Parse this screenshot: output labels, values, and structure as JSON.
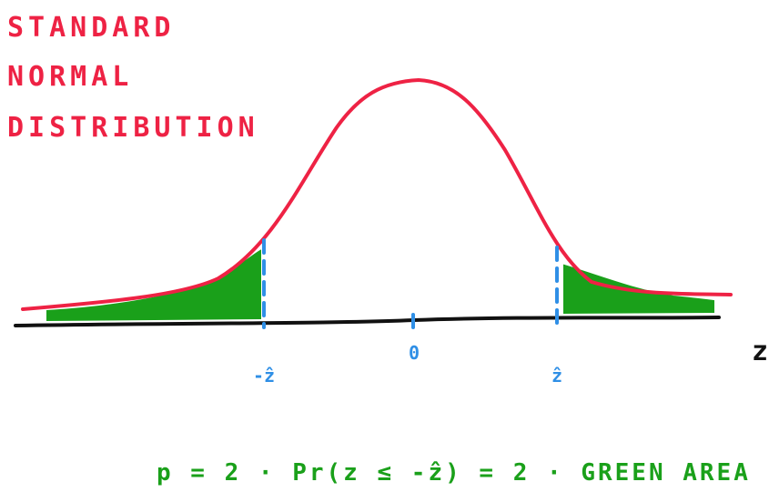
{
  "title": {
    "line1": "STANDARD",
    "line2": "NORMAL",
    "line3": "DISTRIBUTION"
  },
  "axis": {
    "variable_label": "z",
    "ticks": [
      {
        "name": "neg-z-hat",
        "label": "-ẑ"
      },
      {
        "name": "zero",
        "label": "0"
      },
      {
        "name": "z-hat",
        "label": "ẑ"
      }
    ]
  },
  "formula": "p =  2 · Pr(z ≤ -ẑ) =  2 · GREEN AREA",
  "colors": {
    "curve": "#ee2244",
    "axis": "#111111",
    "markers": "#2f8fe6",
    "tail_area": "#1aa01a",
    "title": "#ee2244"
  }
}
